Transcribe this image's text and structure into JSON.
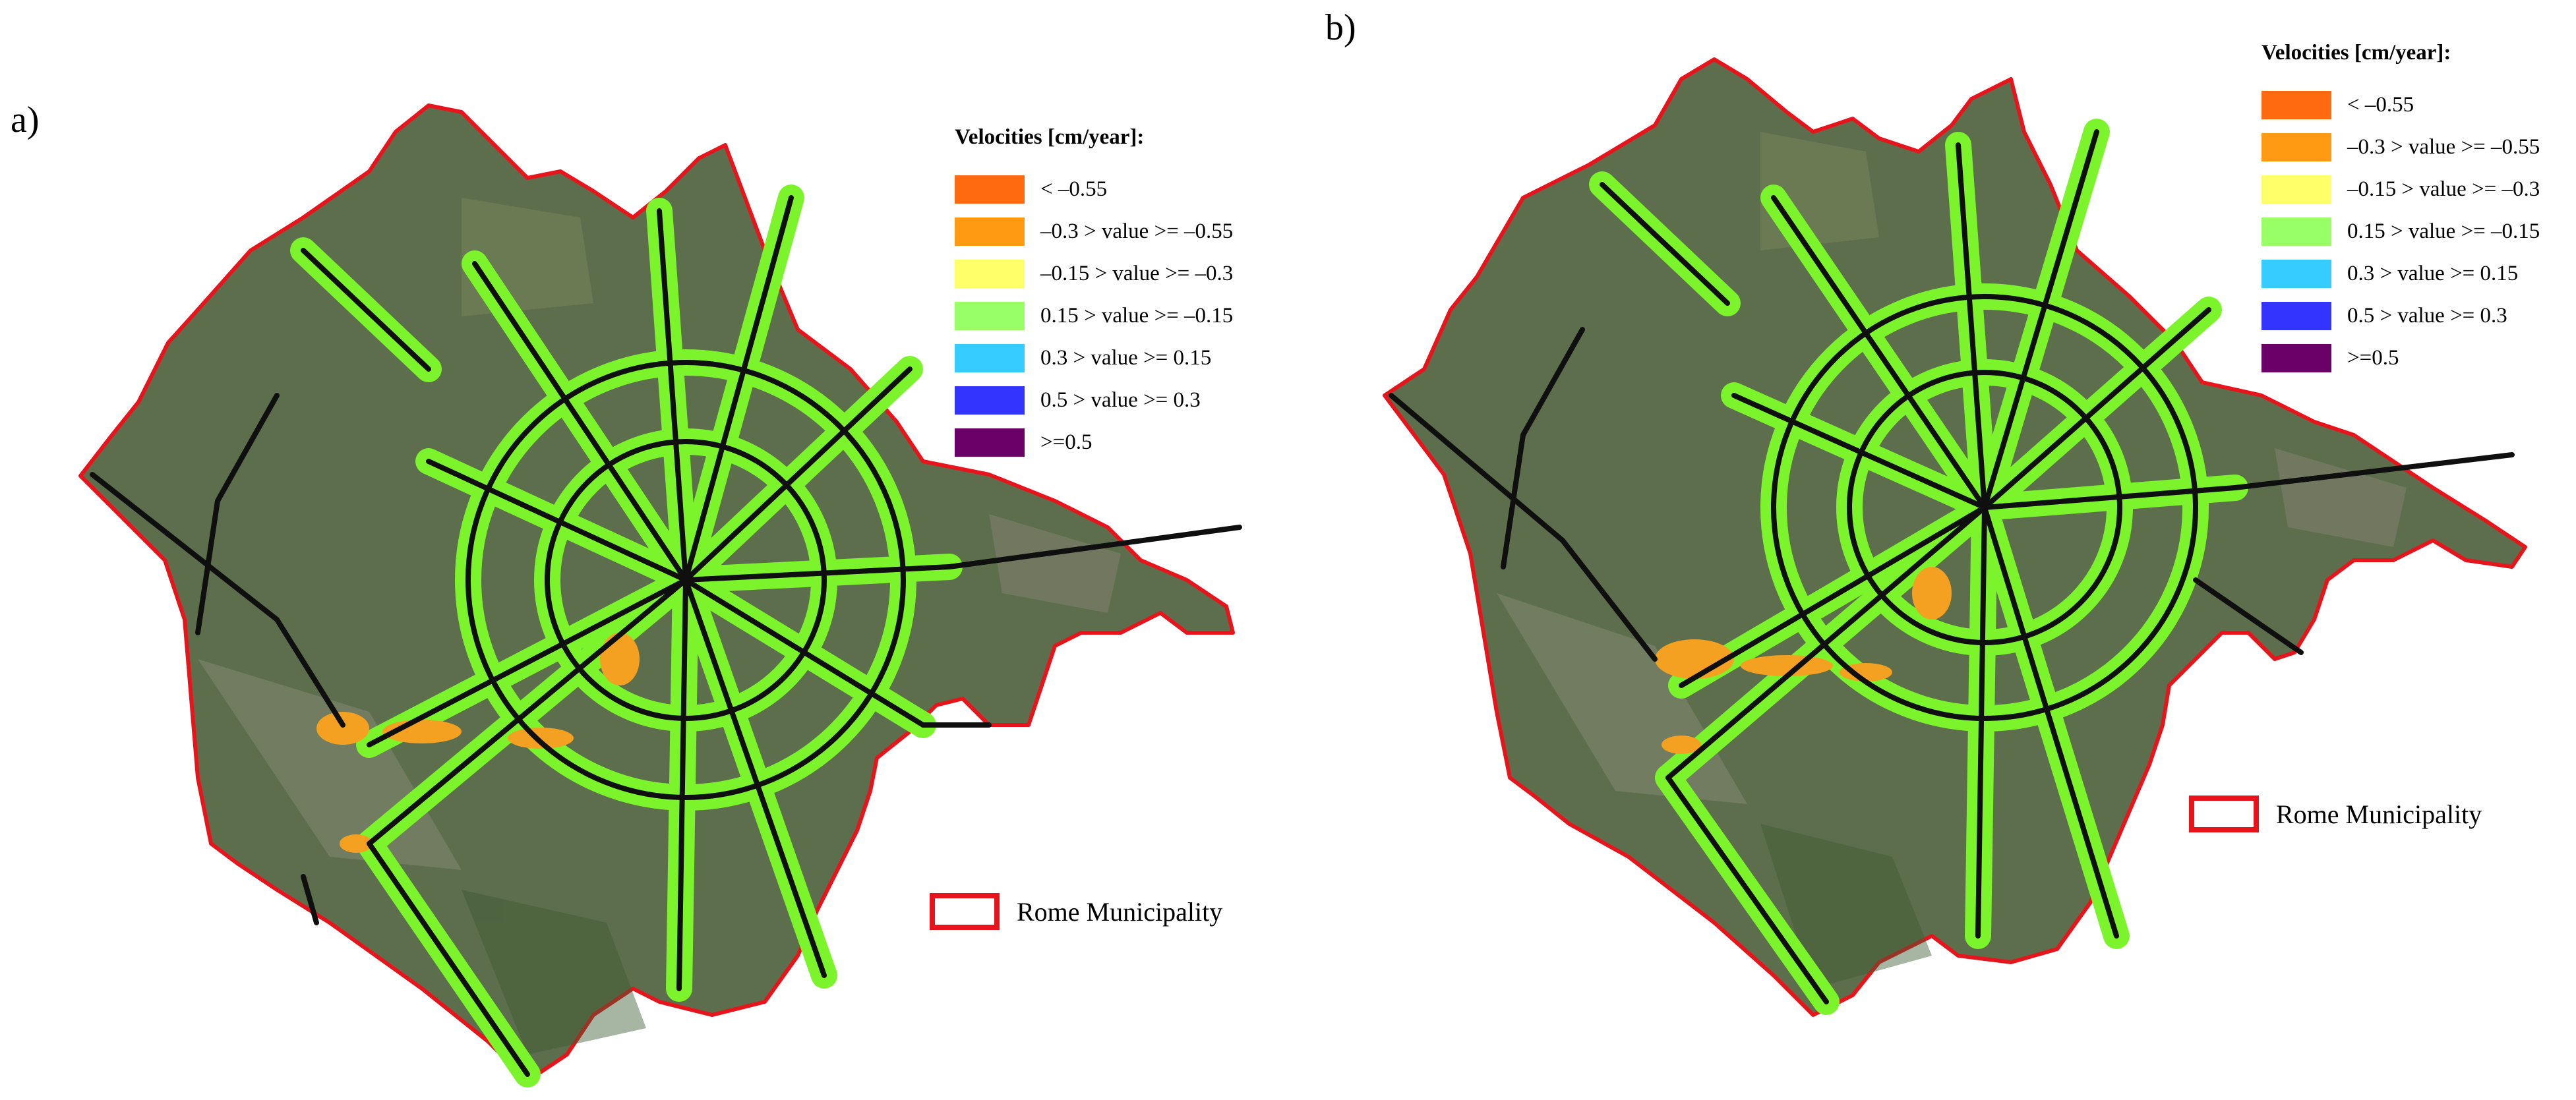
{
  "panels": [
    {
      "label": "a)"
    },
    {
      "label": "b)"
    }
  ],
  "legend": {
    "title": "Velocities [cm/year]:",
    "items": [
      {
        "label": "< –0.55",
        "color": "#ff6a10"
      },
      {
        "label": "–0.3 > value >= –0.55",
        "color": "#ff9a12"
      },
      {
        "label": "–0.15 > value >= –0.3",
        "color": "#ffff6a"
      },
      {
        "label": "0.15 > value >= –0.15",
        "color": "#98ff66"
      },
      {
        "label": "0.3 > value >= 0.15",
        "color": "#36ccff"
      },
      {
        "label": "0.5 > value >= 0.3",
        "color": "#3434ff"
      },
      {
        "label": ">=0.5",
        "color": "#6a0068"
      }
    ]
  },
  "boundary": {
    "label": "Rome Municipality",
    "color": "#e8141c"
  },
  "map_colors": {
    "land": "#5d6e4c",
    "roads": "#0f0f0f",
    "buffer": "#7cf42c",
    "subsidence": "#f4a020"
  }
}
